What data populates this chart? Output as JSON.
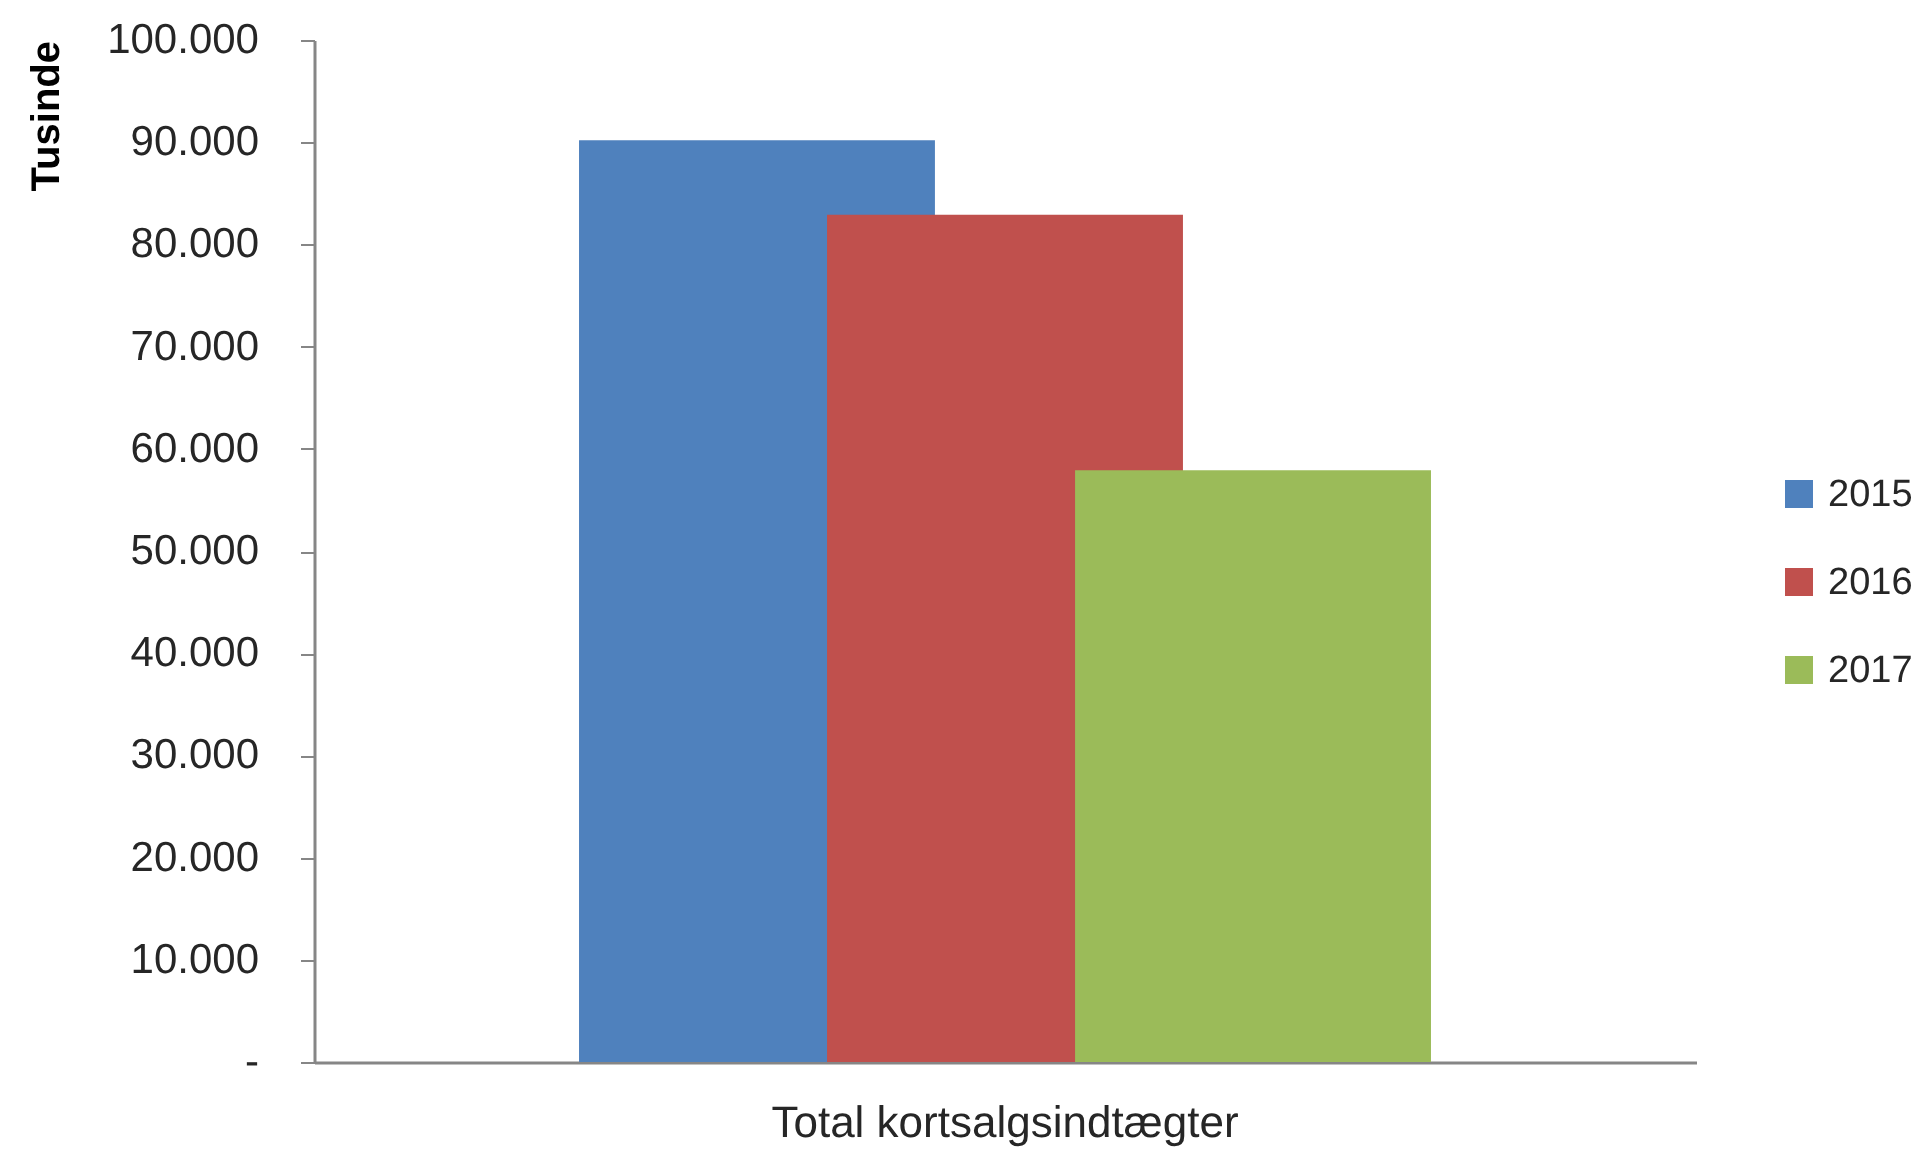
{
  "chart_data": {
    "type": "bar",
    "ylabel": "Tusinde",
    "categories": [
      "Total kortsalgsindtægter"
    ],
    "series": [
      {
        "name": "2015",
        "color": "#4f81bd",
        "values": [
          90200
        ]
      },
      {
        "name": "2016",
        "color": "#c0504d",
        "values": [
          82900
        ]
      },
      {
        "name": "2017",
        "color": "#9bbb59",
        "values": [
          57900
        ]
      }
    ],
    "ylim": [
      0,
      100000
    ],
    "yticks": [
      {
        "value": 0,
        "label": "-"
      },
      {
        "value": 10000,
        "label": "10.000"
      },
      {
        "value": 20000,
        "label": "20.000"
      },
      {
        "value": 30000,
        "label": "30.000"
      },
      {
        "value": 40000,
        "label": "40.000"
      },
      {
        "value": 50000,
        "label": "50.000"
      },
      {
        "value": 60000,
        "label": "60.000"
      },
      {
        "value": 70000,
        "label": "70.000"
      },
      {
        "value": 80000,
        "label": "80.000"
      },
      {
        "value": 90000,
        "label": "90.000"
      },
      {
        "value": 100000,
        "label": "100.000"
      }
    ],
    "grid": false,
    "legend": "right"
  }
}
